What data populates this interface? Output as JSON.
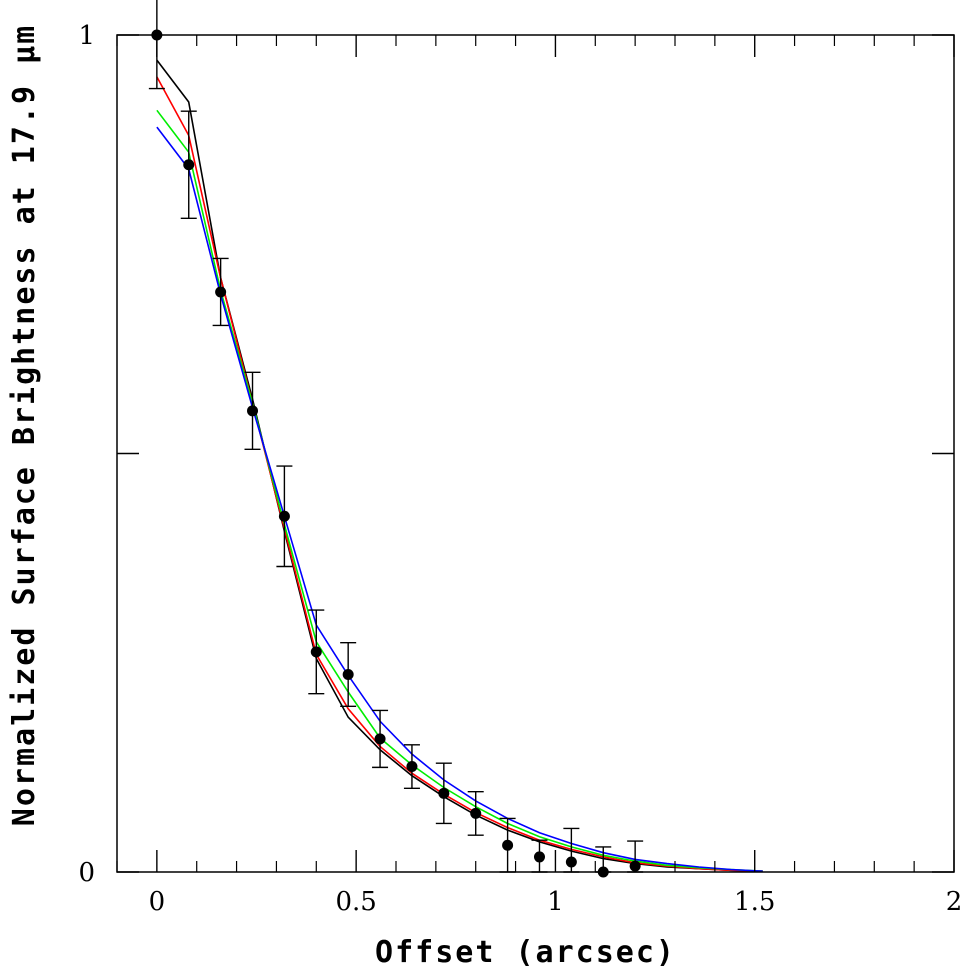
{
  "chart_data": {
    "type": "line",
    "title": "",
    "xlabel": "Offset (arcsec)",
    "ylabel": "Normalized Surface Brightness at 17.9 μm",
    "xlim": [
      -0.1,
      2.0
    ],
    "ylim": [
      0,
      1.0
    ],
    "xticks": [
      0,
      0.5,
      1,
      1.5,
      2
    ],
    "xtick_labels": [
      "0",
      "0.5",
      "1",
      "1.5",
      "2"
    ],
    "yticks": [
      0,
      0.5,
      1
    ],
    "ytick_labels": [
      "0",
      "",
      "1"
    ],
    "grid": false,
    "legend": "none",
    "observed": {
      "x": [
        0,
        0.08,
        0.16,
        0.24,
        0.32,
        0.4,
        0.48,
        0.56,
        0.64,
        0.72,
        0.8,
        0.88,
        0.96,
        1.04,
        1.12,
        1.2
      ],
      "y": [
        1.0,
        0.845,
        0.693,
        0.551,
        0.425,
        0.263,
        0.236,
        0.159,
        0.126,
        0.094,
        0.07,
        0.032,
        0.018,
        0.012,
        0.0,
        0.007
      ],
      "yerr": [
        0.064,
        0.064,
        0.04,
        0.046,
        0.06,
        0.05,
        0.038,
        0.034,
        0.026,
        0.036,
        0.026,
        0.032,
        0.02,
        0.04,
        0.03,
        0.03
      ],
      "color": "#000000"
    },
    "series": [
      {
        "color": "#000000",
        "x": [
          0,
          0.08,
          0.16,
          0.24,
          0.32,
          0.4,
          0.48,
          0.56,
          0.64,
          0.72,
          0.8,
          0.88,
          0.96,
          1.04,
          1.12,
          1.2,
          1.28,
          1.36,
          1.44,
          1.52
        ],
        "y": [
          0.97,
          0.92,
          0.71,
          0.565,
          0.407,
          0.255,
          0.185,
          0.146,
          0.115,
          0.09,
          0.068,
          0.05,
          0.036,
          0.025,
          0.016,
          0.01,
          0.006,
          0.004,
          0.002,
          0.001
        ]
      },
      {
        "color": "#ff0000",
        "x": [
          0,
          0.08,
          0.16,
          0.24,
          0.32,
          0.4,
          0.48,
          0.56,
          0.64,
          0.72,
          0.8,
          0.88,
          0.96,
          1.04,
          1.12,
          1.2,
          1.28,
          1.36,
          1.44,
          1.52
        ],
        "y": [
          0.95,
          0.88,
          0.71,
          0.56,
          0.41,
          0.26,
          0.195,
          0.15,
          0.118,
          0.093,
          0.071,
          0.053,
          0.038,
          0.027,
          0.018,
          0.011,
          0.007,
          0.004,
          0.002,
          0.001
        ]
      },
      {
        "color": "#00ee00",
        "x": [
          0,
          0.08,
          0.16,
          0.24,
          0.32,
          0.4,
          0.48,
          0.56,
          0.64,
          0.72,
          0.8,
          0.88,
          0.96,
          1.04,
          1.12,
          1.2,
          1.28,
          1.36,
          1.44,
          1.52
        ],
        "y": [
          0.91,
          0.86,
          0.695,
          0.56,
          0.415,
          0.275,
          0.215,
          0.16,
          0.128,
          0.101,
          0.078,
          0.058,
          0.042,
          0.03,
          0.02,
          0.013,
          0.008,
          0.005,
          0.003,
          0.001
        ]
      },
      {
        "color": "#0000ff",
        "x": [
          0,
          0.08,
          0.16,
          0.24,
          0.32,
          0.4,
          0.48,
          0.56,
          0.64,
          0.72,
          0.8,
          0.88,
          0.96,
          1.04,
          1.12,
          1.2,
          1.28,
          1.36,
          1.44,
          1.52
        ],
        "y": [
          0.89,
          0.84,
          0.69,
          0.555,
          0.425,
          0.295,
          0.235,
          0.18,
          0.141,
          0.11,
          0.085,
          0.064,
          0.047,
          0.034,
          0.023,
          0.015,
          0.01,
          0.006,
          0.003,
          0.001
        ]
      }
    ]
  }
}
